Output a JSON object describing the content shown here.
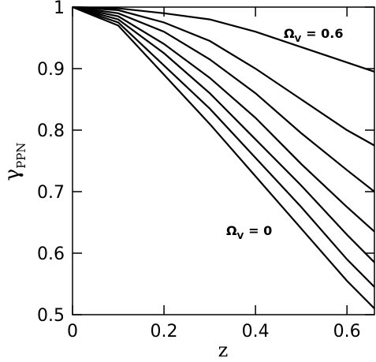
{
  "chart_data": {
    "type": "line",
    "x": [
      0,
      0.1,
      0.2,
      0.3,
      0.4,
      0.5,
      0.6,
      0.66
    ],
    "series": [
      {
        "color": "#000000",
        "values": [
          1,
          0.998,
          0.99,
          0.98,
          0.96,
          0.935,
          0.91,
          0.895
        ]
      },
      {
        "color": "#000000",
        "values": [
          1,
          0.995,
          0.975,
          0.945,
          0.9,
          0.85,
          0.8,
          0.775
        ]
      },
      {
        "color": "#000000",
        "values": [
          1,
          0.99,
          0.96,
          0.915,
          0.86,
          0.795,
          0.735,
          0.7
        ]
      },
      {
        "color": "#000000",
        "values": [
          1,
          0.985,
          0.94,
          0.885,
          0.82,
          0.745,
          0.675,
          0.635
        ]
      },
      {
        "color": "#000000",
        "values": [
          1,
          0.98,
          0.925,
          0.86,
          0.785,
          0.71,
          0.63,
          0.585
        ]
      },
      {
        "color": "#000000",
        "values": [
          1,
          0.975,
          0.905,
          0.835,
          0.755,
          0.675,
          0.59,
          0.545
        ]
      },
      {
        "color": "#000000",
        "values": [
          1,
          0.97,
          0.89,
          0.81,
          0.725,
          0.64,
          0.555,
          0.51
        ]
      }
    ],
    "xlim": [
      0,
      0.66
    ],
    "xticks": [
      0,
      0.2,
      0.4,
      0.6
    ],
    "ylim": [
      0.5,
      1
    ],
    "yticks": [
      0.5,
      0.6,
      0.7,
      0.8,
      0.9,
      1
    ],
    "x_label": "z",
    "y_label": {
      "symbol": "γ",
      "subscript": "PPN"
    },
    "annotations": [
      {
        "symbol": "Ω",
        "subscript": "V",
        "text": "= 0.6"
      },
      {
        "symbol": "Ω",
        "subscript": "V",
        "text": "= 0"
      }
    ]
  }
}
